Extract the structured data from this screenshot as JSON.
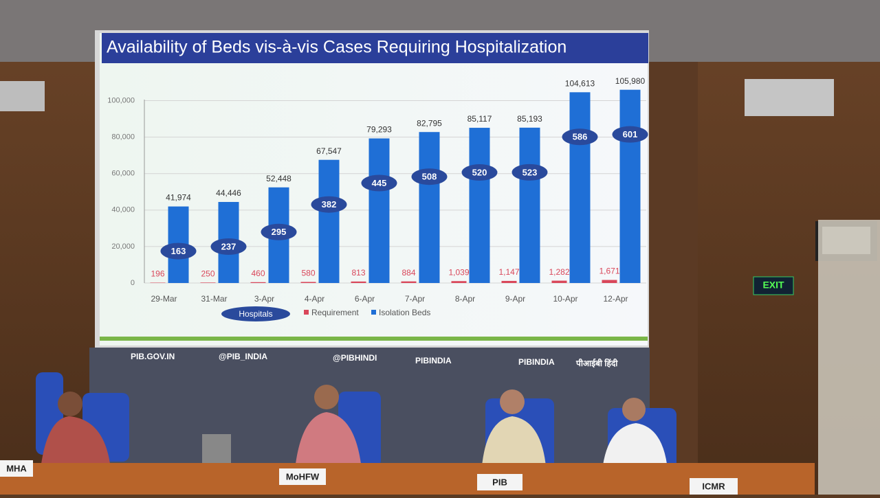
{
  "chart_data": {
    "type": "bar",
    "title": "Availability of Beds vis-à-vis Cases Requiring Hospitalization",
    "categories": [
      "29-Mar",
      "31-Mar",
      "3-Apr",
      "4-Apr",
      "6-Apr",
      "7-Apr",
      "8-Apr",
      "9-Apr",
      "10-Apr",
      "12-Apr"
    ],
    "series": [
      {
        "name": "Requirement",
        "color": "#d9475a",
        "values": [
          196,
          250,
          460,
          580,
          813,
          884,
          1039,
          1147,
          1282,
          1671
        ],
        "value_labels": [
          "196",
          "250",
          "460",
          "580",
          "813",
          "884",
          "1,039",
          "1,147",
          "1,282",
          "1,671"
        ]
      },
      {
        "name": "Isolation Beds",
        "color": "#1f6fd6",
        "values": [
          41974,
          44446,
          52448,
          67547,
          79293,
          82795,
          85117,
          85193,
          104613,
          105980
        ],
        "value_labels": [
          "41,974",
          "44,446",
          "52,448",
          "67,547",
          "79,293",
          "82,795",
          "85,117",
          "85,193",
          "104,613",
          "105,980"
        ]
      }
    ],
    "hospitals": {
      "name": "Hospitals",
      "color": "#2a4a9c",
      "values": [
        163,
        237,
        295,
        382,
        445,
        508,
        520,
        523,
        586,
        601
      ]
    },
    "ylim": [
      0,
      110000
    ],
    "yticks": [
      0,
      {
        "value": 20000,
        "label": "20,000"
      },
      {
        "value": 40000,
        "label": "40,000"
      },
      {
        "value": 60000,
        "label": "60,000"
      },
      {
        "value": 80000,
        "label": "80,000"
      },
      {
        "value": 100000,
        "label": "100,000"
      }
    ],
    "grid": true
  },
  "scene": {
    "banner": [
      "PIB.GOV.IN",
      "@PIB_INDIA",
      "@PIBHINDI",
      "PIBINDIA",
      "PIBINDIA",
      "पीआईबी हिंदी"
    ],
    "nameplates": [
      "MHA",
      "MoHFW",
      "PIB",
      "ICMR"
    ],
    "exit": "EXIT"
  }
}
